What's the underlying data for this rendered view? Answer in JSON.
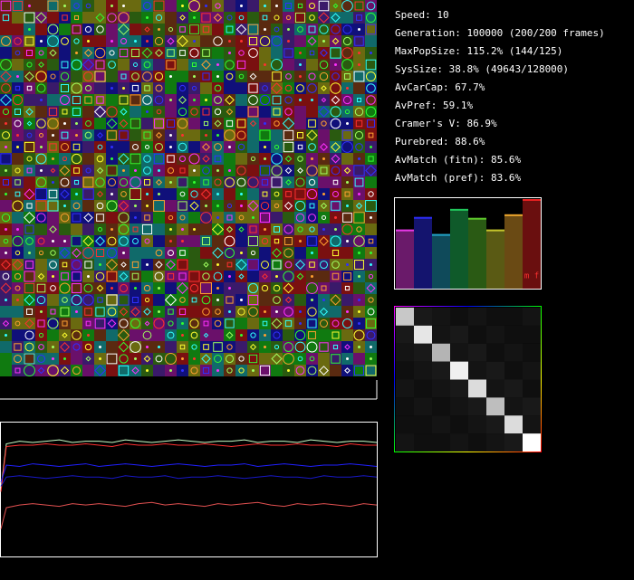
{
  "stats": [
    "Speed: 10",
    "Generation: 100000 (200/200 frames)",
    "MaxPopSize: 115.2% (144/125)",
    "SysSize: 38.8% (49643/128000)",
    "AvCarCap: 67.7%",
    "AvPref: 59.1%",
    "Cramer's V: 86.9%",
    "Purebred: 88.6%",
    "AvMatch (fitn): 85.6%",
    "AvMatch (pref): 83.6%"
  ],
  "chart_data": [
    {
      "type": "bar",
      "ylim": [
        0,
        100
      ],
      "label": "m f",
      "values": [
        66,
        80,
        61,
        89,
        79,
        66,
        83,
        100
      ],
      "colors": [
        "#6a1a6a",
        "#14146e",
        "#0f4a5a",
        "#0f5a2a",
        "#2a5a14",
        "#5a5a14",
        "#6a4a14",
        "#6a0f0f"
      ]
    },
    {
      "type": "heatmap",
      "ylim": [
        0,
        255
      ],
      "values": [
        [
          200,
          25,
          20,
          15,
          20,
          15,
          15,
          20
        ],
        [
          25,
          230,
          20,
          25,
          15,
          20,
          15,
          15
        ],
        [
          20,
          25,
          180,
          20,
          25,
          15,
          20,
          15
        ],
        [
          15,
          20,
          25,
          240,
          20,
          25,
          15,
          20
        ],
        [
          20,
          15,
          20,
          25,
          220,
          20,
          25,
          15
        ],
        [
          15,
          20,
          15,
          20,
          25,
          190,
          20,
          25
        ],
        [
          15,
          15,
          20,
          15,
          20,
          25,
          220,
          20
        ],
        [
          20,
          15,
          15,
          20,
          15,
          20,
          25,
          255
        ]
      ]
    },
    {
      "type": "line",
      "ylim": [
        0,
        100
      ],
      "series": [
        {
          "color": "#c8ffc8",
          "values": [
            50,
            84,
            86,
            85,
            86,
            87,
            85,
            86,
            86,
            85,
            87,
            86,
            85,
            86,
            87,
            86,
            85,
            86,
            86,
            87,
            85,
            86,
            86,
            85,
            87,
            86,
            85,
            86,
            86,
            85
          ]
        },
        {
          "color": "#ff3030",
          "values": [
            48,
            82,
            83,
            83,
            84,
            83,
            83,
            84,
            83,
            82,
            84,
            83,
            83,
            84,
            83,
            83,
            84,
            83,
            82,
            83,
            84,
            83,
            83,
            84,
            83,
            83,
            82,
            84,
            83,
            83
          ]
        },
        {
          "color": "#2020ff",
          "values": [
            55,
            68,
            67,
            69,
            68,
            67,
            68,
            69,
            67,
            68,
            69,
            68,
            67,
            68,
            69,
            68,
            67,
            68,
            68,
            69,
            67,
            68,
            69,
            68,
            67,
            68,
            68,
            69,
            68,
            67
          ]
        },
        {
          "color": "#1818c8",
          "values": [
            52,
            59,
            60,
            59,
            58,
            59,
            60,
            59,
            59,
            58,
            60,
            59,
            59,
            60,
            58,
            59,
            59,
            60,
            59,
            58,
            59,
            60,
            59,
            59,
            58,
            60,
            59,
            59,
            60,
            59
          ]
        },
        {
          "color": "#e05050",
          "values": [
            20,
            36,
            38,
            39,
            38,
            37,
            39,
            38,
            39,
            38,
            37,
            39,
            40,
            38,
            39,
            38,
            37,
            39,
            38,
            39,
            40,
            38,
            37,
            39,
            38,
            39,
            38,
            37,
            39,
            38
          ]
        }
      ]
    }
  ]
}
